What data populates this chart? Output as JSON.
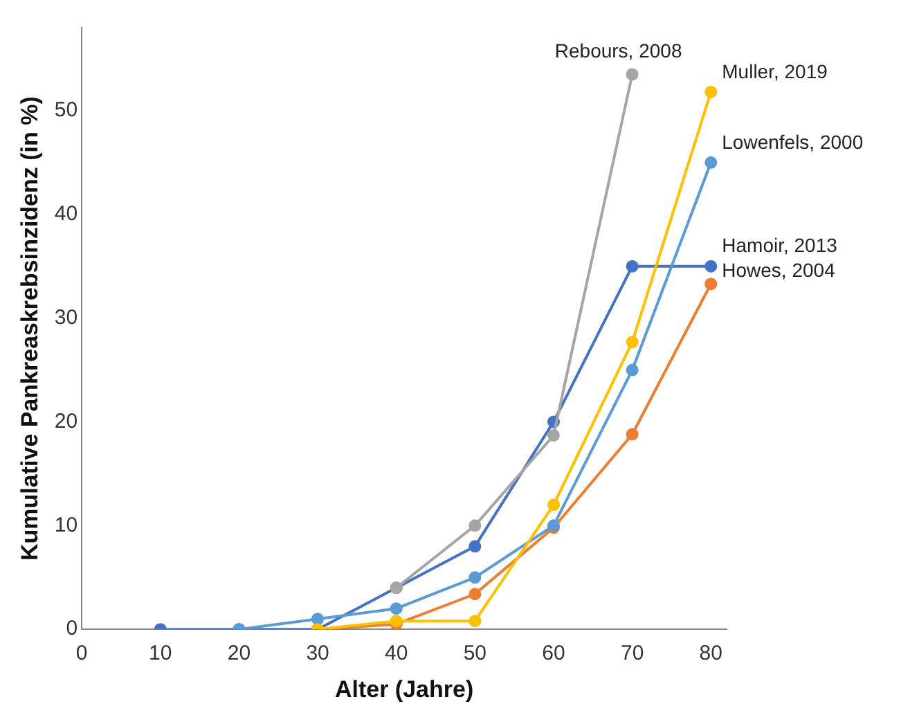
{
  "chart_data": {
    "type": "line",
    "xlabel": "Alter (Jahre)",
    "ylabel": "Kumulative Pankreaskrebsinzidenz (in %)",
    "x": [
      10,
      20,
      30,
      40,
      50,
      60,
      70,
      80
    ],
    "series": [
      {
        "name": "Rebours, 2008",
        "color": "#a5a5a5",
        "values": [
          null,
          null,
          null,
          4,
          10,
          18.7,
          53.5,
          null
        ]
      },
      {
        "name": "Muller, 2019",
        "color": "#ffc000",
        "values": [
          null,
          null,
          0,
          0.8,
          0.8,
          12,
          27.7,
          51.8
        ]
      },
      {
        "name": "Lowenfels, 2000",
        "color": "#5b9bd5",
        "values": [
          null,
          0,
          1,
          2,
          5,
          10,
          25,
          45
        ]
      },
      {
        "name": "Hamoir, 2013",
        "color": "#4472c4",
        "values": [
          0,
          0,
          0,
          4,
          8,
          20,
          35,
          35
        ]
      },
      {
        "name": "Howes, 2004",
        "color": "#ed7d31",
        "values": [
          null,
          null,
          0,
          0.5,
          3.4,
          9.8,
          18.8,
          33.3
        ]
      }
    ],
    "xlim": [
      0,
      82
    ],
    "xticks": [
      0,
      10,
      20,
      30,
      40,
      50,
      60,
      70,
      80
    ],
    "ylim": [
      0,
      58
    ],
    "yticks": [
      0,
      10,
      20,
      30,
      40,
      50
    ],
    "grid": false,
    "legend": false,
    "marker": "circle",
    "line_style": "solid"
  }
}
